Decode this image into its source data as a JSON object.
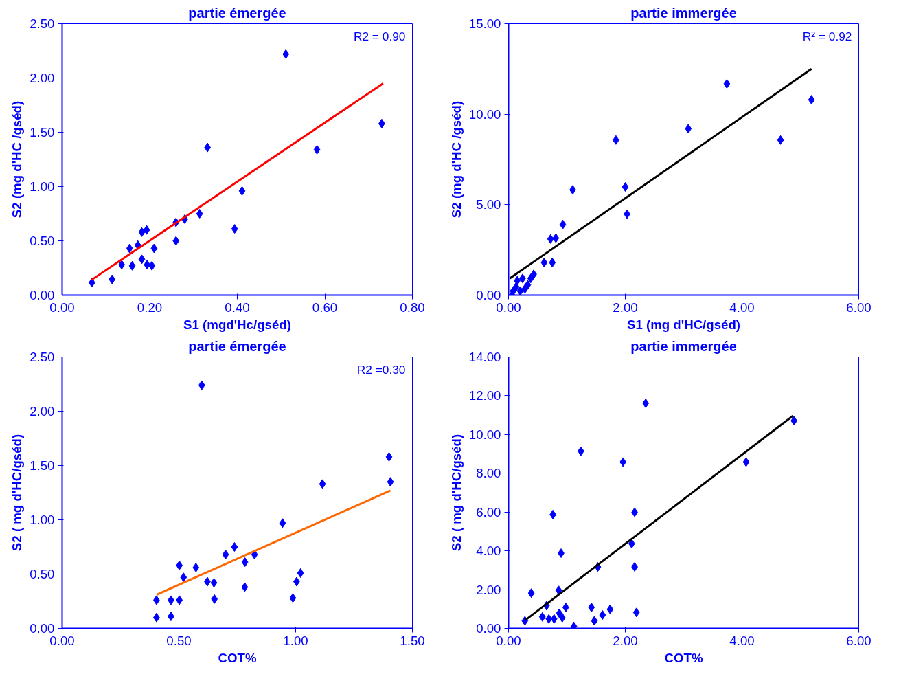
{
  "chart_data": [
    {
      "type": "scatter",
      "title": "partie émergée",
      "xlabel": "S1 (mgd'Hc/gséd)",
      "ylabel": "S2 (mg d'HC /gséd)",
      "annotations": [
        "R2 = 0.90"
      ],
      "marker": "diamond",
      "grid": false,
      "xlim": [
        0,
        0.8
      ],
      "ylim": [
        0,
        2.5
      ],
      "xticks": [
        {
          "value": 0,
          "label": "0.00"
        },
        {
          "value": 0.2,
          "label": "0.20"
        },
        {
          "value": 0.4,
          "label": "0.40"
        },
        {
          "value": 0.6,
          "label": "0.60"
        },
        {
          "value": 0.8,
          "label": "0.80"
        }
      ],
      "yticks": [
        {
          "value": 0,
          "label": "0.00"
        },
        {
          "value": 0.5,
          "label": "0.50"
        },
        {
          "value": 1,
          "label": "1.00"
        },
        {
          "value": 1.5,
          "label": "1.50"
        },
        {
          "value": 2,
          "label": "2.00"
        },
        {
          "value": 2.5,
          "label": "2.50"
        }
      ],
      "series": [
        {
          "color": "#0000ff",
          "x": [
            0.068,
            0.114,
            0.136,
            0.16,
            0.154,
            0.173,
            0.182,
            0.193,
            0.182,
            0.194,
            0.205,
            0.21,
            0.26,
            0.26,
            0.28,
            0.314,
            0.332,
            0.394,
            0.411,
            0.511,
            0.582,
            0.73
          ],
          "values": [
            0.115,
            0.145,
            0.28,
            0.27,
            0.43,
            0.46,
            0.58,
            0.6,
            0.33,
            0.28,
            0.27,
            0.43,
            0.67,
            0.5,
            0.7,
            0.75,
            1.36,
            0.61,
            0.96,
            2.22,
            1.34,
            1.58
          ]
        },
        {
          "type": "line",
          "marker": "none",
          "color": "#ff0000",
          "x": [
            0.067,
            0.733
          ],
          "values": [
            0.14,
            1.95
          ]
        }
      ]
    },
    {
      "type": "scatter",
      "title": "partie immergée",
      "xlabel": "S1 (mg d'HC/gséd)",
      "ylabel": "S2 (mg d'HC /gséd)",
      "annotations": [
        "R² = 0.92"
      ],
      "marker": "diamond",
      "grid": false,
      "xlim": [
        0,
        6
      ],
      "ylim": [
        0,
        15
      ],
      "xticks": [
        {
          "value": 0,
          "label": "0.00"
        },
        {
          "value": 2,
          "label": "2.00"
        },
        {
          "value": 4,
          "label": "4.00"
        },
        {
          "value": 6,
          "label": "6.00"
        }
      ],
      "yticks": [
        {
          "value": 0,
          "label": "0.00"
        },
        {
          "value": 5,
          "label": "5.00"
        },
        {
          "value": 10,
          "label": "10.00"
        },
        {
          "value": 15,
          "label": "15.00"
        }
      ],
      "series": [
        {
          "color": "#0000ff",
          "x": [
            1.1,
            1.84,
            2.0,
            2.03,
            3.08,
            3.74,
            4.66,
            5.19,
            0.93,
            0.72,
            0.81,
            0.61,
            0.75,
            0.08,
            0.15,
            0.24,
            0.33,
            0.43,
            0.2,
            0.28,
            0.06,
            0.38,
            0.13
          ],
          "values": [
            5.82,
            8.57,
            5.98,
            4.48,
            9.2,
            11.68,
            8.57,
            10.8,
            3.9,
            3.1,
            3.15,
            1.8,
            1.8,
            0.23,
            0.8,
            0.92,
            0.57,
            1.15,
            0.23,
            0.34,
            0.0,
            0.92,
            0.46
          ]
        },
        {
          "type": "line",
          "marker": "none",
          "color": "#000000",
          "x": [
            0.02,
            5.19
          ],
          "values": [
            0.92,
            12.5
          ]
        }
      ]
    },
    {
      "type": "scatter",
      "title": "partie émergée",
      "xlabel": "COT%",
      "ylabel": "S2 ( mg d'HC/gséd)",
      "annotations": [
        "R2 =0.30"
      ],
      "marker": "diamond",
      "grid": false,
      "xlim": [
        0,
        1.5
      ],
      "ylim": [
        0,
        2.5
      ],
      "xticks": [
        {
          "value": 0,
          "label": "0.00"
        },
        {
          "value": 0.5,
          "label": "0.50"
        },
        {
          "value": 1,
          "label": "1.00"
        },
        {
          "value": 1.5,
          "label": "1.50"
        }
      ],
      "yticks": [
        {
          "value": 0,
          "label": "0.00"
        },
        {
          "value": 0.5,
          "label": "0.50"
        },
        {
          "value": 1,
          "label": "1.00"
        },
        {
          "value": 1.5,
          "label": "1.50"
        },
        {
          "value": 2,
          "label": "2.00"
        },
        {
          "value": 2.5,
          "label": "2.50"
        }
      ],
      "series": [
        {
          "color": "#0000ff",
          "x": [
            0.404,
            0.404,
            0.466,
            0.466,
            0.502,
            0.502,
            0.52,
            0.573,
            0.598,
            0.622,
            0.65,
            0.652,
            0.7,
            0.738,
            0.783,
            0.782,
            0.824,
            0.944,
            0.988,
            1.004,
            1.021,
            1.115,
            1.4,
            1.406
          ],
          "values": [
            0.1,
            0.26,
            0.11,
            0.26,
            0.26,
            0.58,
            0.47,
            0.56,
            2.24,
            0.43,
            0.42,
            0.27,
            0.68,
            0.75,
            0.61,
            0.38,
            0.68,
            0.97,
            0.28,
            0.43,
            0.51,
            1.33,
            1.58,
            1.35
          ]
        },
        {
          "type": "line",
          "marker": "none",
          "color": "#ff6600",
          "x": [
            0.404,
            1.406
          ],
          "values": [
            0.31,
            1.27
          ]
        }
      ]
    },
    {
      "type": "scatter",
      "title": "partie immergée",
      "xlabel": "COT%",
      "ylabel": "S2 ( mg d'HC/gséd)",
      "marker": "diamond",
      "grid": false,
      "xlim": [
        0,
        6
      ],
      "ylim": [
        0,
        14
      ],
      "xticks": [
        {
          "value": 0,
          "label": "0.00"
        },
        {
          "value": 2,
          "label": "2.00"
        },
        {
          "value": 4,
          "label": "4.00"
        },
        {
          "value": 6,
          "label": "6.00"
        }
      ],
      "yticks": [
        {
          "value": 0,
          "label": "0.00"
        },
        {
          "value": 2,
          "label": "2.00"
        },
        {
          "value": 4,
          "label": "4.00"
        },
        {
          "value": 6,
          "label": "6.00"
        },
        {
          "value": 8,
          "label": "8.00"
        },
        {
          "value": 10,
          "label": "10.00"
        },
        {
          "value": 12,
          "label": "12.00"
        },
        {
          "value": 14,
          "label": "14.00"
        }
      ],
      "series": [
        {
          "color": "#0000ff",
          "x": [
            0.28,
            0.39,
            0.65,
            0.58,
            0.69,
            0.76,
            0.78,
            0.86,
            0.9,
            0.87,
            0.92,
            0.98,
            1.12,
            1.24,
            1.42,
            1.47,
            1.53,
            1.61,
            1.74,
            1.96,
            2.11,
            2.16,
            2.16,
            2.19,
            2.35,
            4.07,
            4.89
          ],
          "values": [
            0.39,
            1.82,
            1.17,
            0.59,
            0.49,
            5.87,
            0.49,
            1.96,
            3.88,
            0.78,
            0.55,
            1.08,
            0.1,
            9.14,
            1.08,
            0.39,
            3.17,
            0.69,
            0.98,
            8.58,
            4.37,
            5.99,
            3.17,
            0.82,
            11.61,
            8.58,
            10.71
          ]
        },
        {
          "type": "line",
          "marker": "none",
          "color": "#000000",
          "x": [
            0.29,
            4.87
          ],
          "values": [
            0.43,
            10.96
          ]
        }
      ]
    }
  ]
}
